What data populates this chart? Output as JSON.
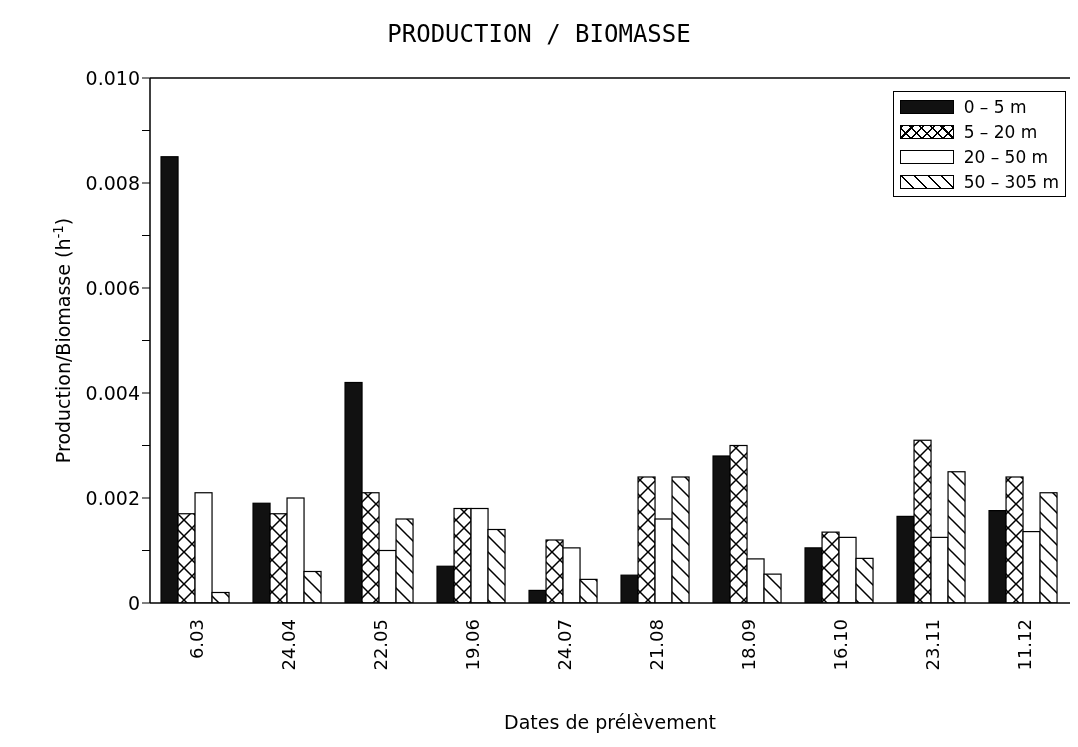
{
  "chart_data": {
    "type": "bar",
    "title": "PRODUCTION / BIOMASSE",
    "xlabel": "Dates de prélèvement",
    "ylabel": "Production/Biomasse (h$^{-1}$)",
    "categories": [
      "6.03",
      "24.04",
      "22.05",
      "19.06",
      "24.07",
      "21.08",
      "18.09",
      "16.10",
      "23.11",
      "11.12"
    ],
    "series": [
      {
        "name": "0 – 5 m",
        "color": "#111111",
        "values": [
          0.0085,
          0.0019,
          0.0042,
          0.0007,
          0.00024,
          0.00053,
          0.0028,
          0.00105,
          0.00165,
          0.00176
        ]
      },
      {
        "name": "5 – 20 m",
        "color": "#ffffff",
        "values": [
          0.0017,
          0.0017,
          0.0021,
          0.0018,
          0.0012,
          0.0024,
          0.003,
          0.00135,
          0.0031,
          0.0024
        ]
      },
      {
        "name": "20 – 50 m",
        "color": "#ffffff",
        "values": [
          0.0021,
          0.002,
          0.001,
          0.0018,
          0.00105,
          0.0016,
          0.00084,
          0.00125,
          0.00125,
          0.00136
        ]
      },
      {
        "name": "50 – 305 m",
        "color": "#ffffff",
        "values": [
          0.0002,
          0.0006,
          0.0016,
          0.0014,
          0.00045,
          0.0024,
          0.00055,
          0.00085,
          0.0025,
          0.0021
        ]
      }
    ],
    "ylim": [
      0,
      0.01
    ],
    "yticks": [
      0,
      {
        "value": 0.001,
        "label": null
      },
      0.002,
      {
        "value": 0.003,
        "label": null
      },
      0.004,
      {
        "value": 0.005,
        "label": null
      },
      0.006,
      {
        "value": 0.007,
        "label": null
      },
      0.008,
      {
        "value": 0.009,
        "label": null
      },
      {
        "value": 0.01,
        "label": "0.010"
      }
    ],
    "grid": false,
    "legend": "top right"
  }
}
